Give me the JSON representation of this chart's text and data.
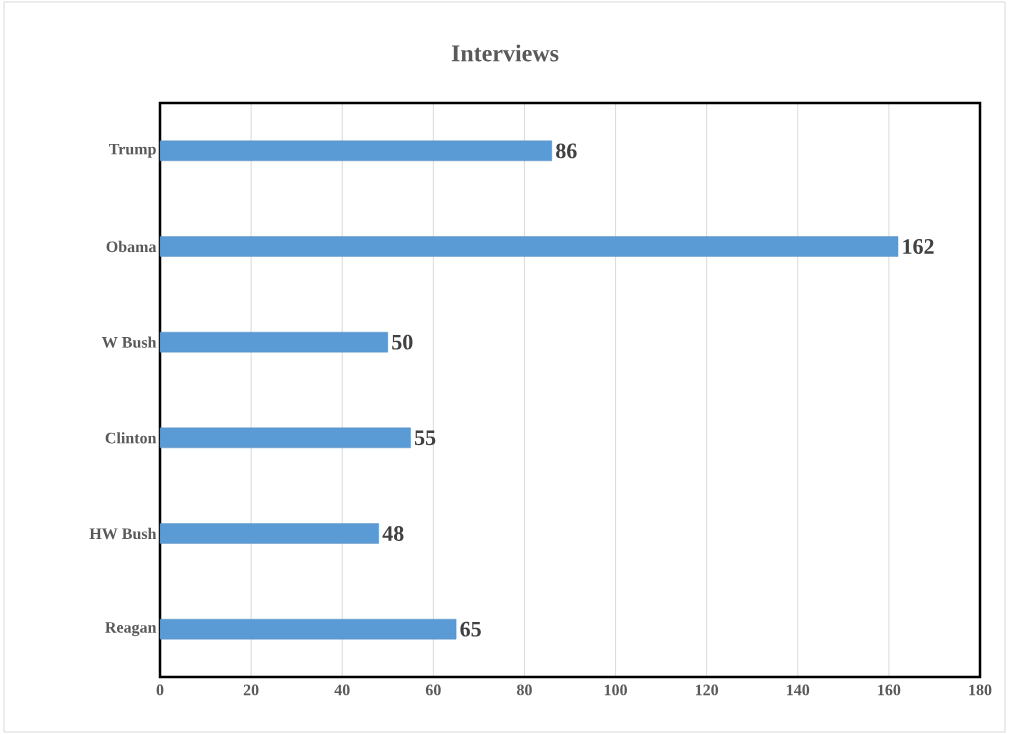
{
  "chart_data": {
    "type": "bar",
    "orientation": "horizontal",
    "title": "Interviews",
    "categories": [
      "Trump",
      "Obama",
      "W Bush",
      "Clinton",
      "HW Bush",
      "Reagan"
    ],
    "values": [
      86,
      162,
      50,
      55,
      48,
      65
    ],
    "color": "#5b9bd5",
    "xlim": [
      0,
      180
    ],
    "xticks": [
      0,
      20,
      40,
      60,
      80,
      100,
      120,
      140,
      160,
      180
    ],
    "grid": "x",
    "data_labels": true
  }
}
